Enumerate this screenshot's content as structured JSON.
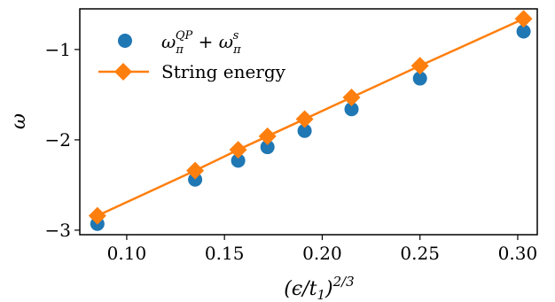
{
  "chart_data": {
    "type": "scatter",
    "xlabel": "(ϵ/t₁)^{2/3}",
    "xlabel_parts": {
      "base": "(ϵ/t",
      "sub": "1",
      "close": ")",
      "sup": "2/3"
    },
    "ylabel": "ω",
    "xlim": [
      0.076,
      0.31
    ],
    "ylim": [
      -3.05,
      -0.55
    ],
    "xticks": [
      0.1,
      0.15,
      0.2,
      0.25,
      0.3
    ],
    "xtick_labels": [
      "0.10",
      "0.15",
      "0.20",
      "0.25",
      "0.30"
    ],
    "yticks": [
      -3,
      -2,
      -1
    ],
    "ytick_labels": [
      "−3",
      "−2",
      "−1"
    ],
    "legend_position": "top-left",
    "grid": false,
    "series": [
      {
        "name": "ω_π^{QP} + ω_π^s",
        "kind": "scatter",
        "color": "#1f77b4",
        "marker": "circle",
        "x": [
          0.085,
          0.135,
          0.157,
          0.172,
          0.191,
          0.215,
          0.25,
          0.303
        ],
        "y": [
          -2.93,
          -2.44,
          -2.23,
          -2.08,
          -1.9,
          -1.66,
          -1.32,
          -0.8
        ]
      },
      {
        "name": "String energy",
        "kind": "line",
        "color": "#ff7f0e",
        "marker": "diamond",
        "x": [
          0.085,
          0.135,
          0.157,
          0.172,
          0.191,
          0.215,
          0.25,
          0.303
        ],
        "y": [
          -2.84,
          -2.34,
          -2.11,
          -1.96,
          -1.77,
          -1.53,
          -1.18,
          -0.66
        ]
      }
    ],
    "legend": {
      "entry1": {
        "base": "ω",
        "sub": "π",
        "sup": "QP",
        "plus": " + ",
        "base2": "ω",
        "sub2": "π",
        "sup2": "s"
      },
      "entry2": "String energy"
    }
  }
}
